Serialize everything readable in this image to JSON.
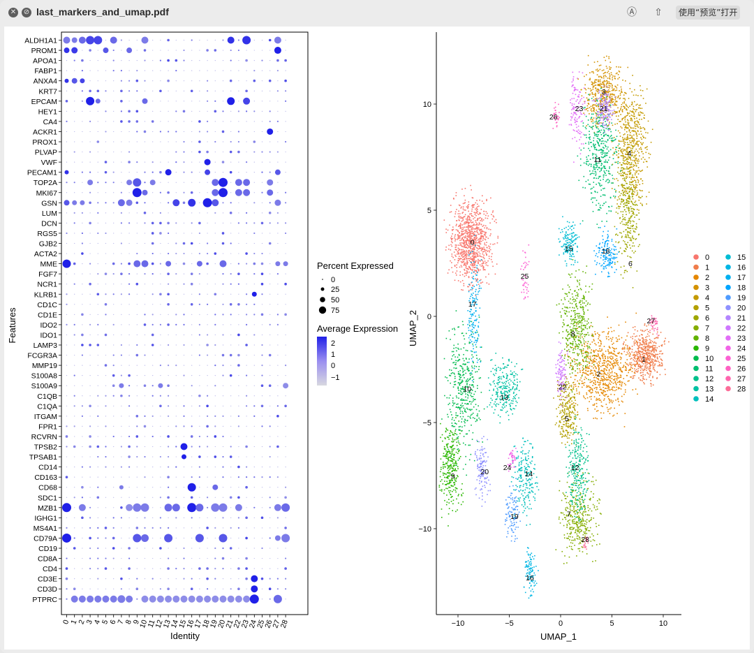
{
  "window": {
    "title": "last_markers_and_umap.pdf",
    "open_with_label": "使用“预览”打开"
  },
  "dotplot": {
    "features": [
      "ALDH1A1",
      "PROM1",
      "APOA1",
      "FABP1",
      "ANXA4",
      "KRT7",
      "EPCAM",
      "HEY1",
      "CA4",
      "ACKR1",
      "PROX1",
      "PLVAP",
      "VWF",
      "PECAM1",
      "TOP2A",
      "MKI67",
      "GSN",
      "LUM",
      "DCN",
      "RGS5",
      "GJB2",
      "ACTA2",
      "MME",
      "FGF7",
      "NCR1",
      "KLRB1",
      "CD1C",
      "CD1E",
      "IDO2",
      "IDO1",
      "LAMP3",
      "FCGR3A",
      "MMP19",
      "S100A8",
      "S100A9",
      "C1QB",
      "C1QA",
      "ITGAM",
      "FPR1",
      "RCVRN",
      "TPSB2",
      "TPSAB1",
      "CD14",
      "CD163",
      "CD68",
      "SDC1",
      "MZB1",
      "IGHG1",
      "MS4A1",
      "CD79A",
      "CD19",
      "CD8A",
      "CD4",
      "CD3E",
      "CD3D",
      "PTPRC"
    ],
    "identities": [
      "0",
      "1",
      "2",
      "3",
      "4",
      "5",
      "6",
      "7",
      "8",
      "9",
      "10",
      "11",
      "12",
      "13",
      "14",
      "15",
      "16",
      "17",
      "18",
      "19",
      "20",
      "21",
      "22",
      "23",
      "24",
      "25",
      "26",
      "27",
      "28"
    ],
    "x_axis_title": "Identity",
    "y_axis_title": "Features"
  },
  "legend_size": {
    "title": "Percent Expressed",
    "labels": [
      "0",
      "25",
      "50",
      "75"
    ]
  },
  "legend_color": {
    "title": "Average Expression",
    "labels": [
      "2",
      "1",
      "0",
      "−1"
    ],
    "color_high": "#2020e8",
    "color_low": "#d8d8e0"
  },
  "umap": {
    "x_axis_title": "UMAP_1",
    "y_axis_title": "UMAP_2",
    "x_ticks": [
      "−10",
      "−5",
      "0",
      "5",
      "10"
    ],
    "y_ticks": [
      "10",
      "5",
      "0",
      "−5",
      "−10"
    ],
    "cluster_labels": [
      "0",
      "1",
      "2",
      "3",
      "4",
      "5",
      "6",
      "7",
      "8",
      "9",
      "10",
      "11",
      "12",
      "13",
      "14",
      "15",
      "16",
      "17",
      "18",
      "19",
      "20",
      "21",
      "22",
      "23",
      "24",
      "25",
      "26",
      "27",
      "28"
    ],
    "cluster_colors": [
      "#F8766D",
      "#F07D4B",
      "#E58700",
      "#D49200",
      "#C49A00",
      "#B3A000",
      "#9EA700",
      "#85AD00",
      "#62B200",
      "#2AB700",
      "#00BB4E",
      "#00BE70",
      "#00C08B",
      "#00C1A3",
      "#00BFBC",
      "#00BCD3",
      "#00B6E4",
      "#00B0F0",
      "#00A5FF",
      "#4E9BFF",
      "#8F91FF",
      "#B385FF",
      "#CF78FF",
      "#E26EF7",
      "#F265E7",
      "#FC61D3",
      "#FF61C2",
      "#FF65AE",
      "#FC6D98"
    ]
  }
}
